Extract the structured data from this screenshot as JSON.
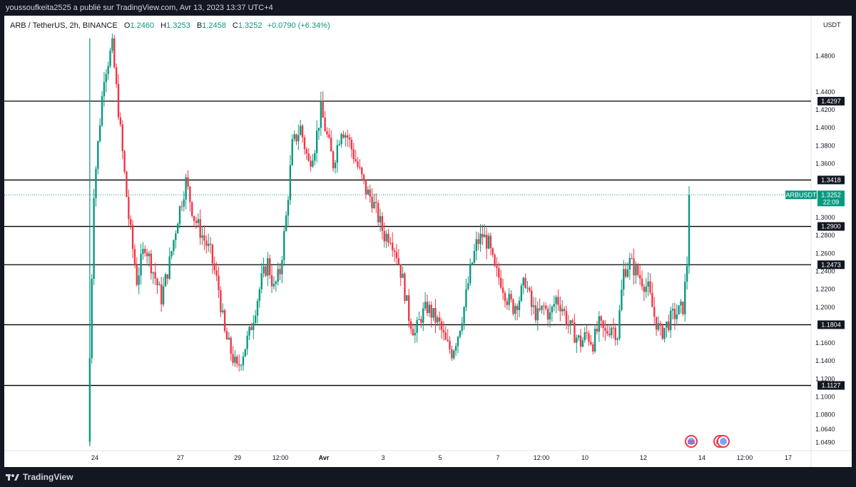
{
  "header": {
    "publisher_line": "youssoufkeita2525 a publié sur TradingView.com, Avr 13, 2023 13:37 UTC+4"
  },
  "legend": {
    "symbol": "ARB / TetherUS, 2h, BINANCE",
    "open_label": "O",
    "open": "1.2460",
    "high_label": "H",
    "high": "1.3253",
    "low_label": "B",
    "low": "1.2458",
    "close_label": "C",
    "close": "1.3252",
    "change": "+0.0790 (+6.34%)"
  },
  "currency": "USDT",
  "footer": {
    "logo_text": "TradingView"
  },
  "colors": {
    "up": "#089981",
    "down": "#f23645",
    "level_line": "#000000",
    "price_line": "#089981"
  },
  "chart_data": {
    "type": "candlestick",
    "symbol": "ARB / TetherUS",
    "interval": "2h",
    "exchange": "BINANCE",
    "ylim": [
      1.04,
      1.525
    ],
    "y_ticks": [
      "1.4800",
      "1.4400",
      "1.4200",
      "1.4000",
      "1.3800",
      "1.3600",
      "1.3000",
      "1.2800",
      "1.2600",
      "1.2400",
      "1.2200",
      "1.2000",
      "1.1600",
      "1.1400",
      "1.1200",
      "1.1000",
      "1.0800",
      "1.0640",
      "1.0490"
    ],
    "x_ticks": [
      "24",
      "27",
      "29",
      "12:00",
      "Avr",
      "3",
      "5",
      "7",
      "12:00",
      "10",
      "12",
      "14",
      "12:00",
      "17"
    ],
    "horizontal_levels": [
      "1.4297",
      "1.3418",
      "1.2900",
      "1.2473",
      "1.1804",
      "1.1127"
    ],
    "last_price": {
      "symbol_label": "ARBUSDT",
      "value": "1.3252",
      "countdown": "22:09"
    },
    "ohlc": {
      "open": 1.246,
      "high": 1.3253,
      "low": 1.2458,
      "close": 1.3252,
      "change": 0.079,
      "change_pct": 6.34
    },
    "price_path": [
      [
        0,
        1.05
      ],
      [
        3,
        1.33
      ],
      [
        8,
        1.46
      ],
      [
        12,
        1.49
      ],
      [
        15,
        1.42
      ],
      [
        20,
        1.3
      ],
      [
        24,
        1.23
      ],
      [
        28,
        1.27
      ],
      [
        32,
        1.24
      ],
      [
        36,
        1.21
      ],
      [
        40,
        1.25
      ],
      [
        44,
        1.3
      ],
      [
        48,
        1.34
      ],
      [
        52,
        1.3
      ],
      [
        56,
        1.28
      ],
      [
        60,
        1.26
      ],
      [
        64,
        1.22
      ],
      [
        67,
        1.17
      ],
      [
        70,
        1.15
      ],
      [
        73,
        1.13
      ],
      [
        76,
        1.15
      ],
      [
        79,
        1.17
      ],
      [
        82,
        1.2
      ],
      [
        85,
        1.23
      ],
      [
        88,
        1.25
      ],
      [
        91,
        1.22
      ],
      [
        94,
        1.24
      ],
      [
        97,
        1.3
      ],
      [
        100,
        1.38
      ],
      [
        104,
        1.4
      ],
      [
        108,
        1.36
      ],
      [
        111,
        1.38
      ],
      [
        114,
        1.42
      ],
      [
        117,
        1.39
      ],
      [
        120,
        1.36
      ],
      [
        124,
        1.4
      ],
      [
        127,
        1.39
      ],
      [
        130,
        1.37
      ],
      [
        133,
        1.35
      ],
      [
        136,
        1.33
      ],
      [
        139,
        1.32
      ],
      [
        142,
        1.3
      ],
      [
        145,
        1.28
      ],
      [
        148,
        1.28
      ],
      [
        151,
        1.26
      ],
      [
        154,
        1.23
      ],
      [
        157,
        1.19
      ],
      [
        160,
        1.17
      ],
      [
        163,
        1.19
      ],
      [
        166,
        1.2
      ],
      [
        169,
        1.19
      ],
      [
        172,
        1.18
      ],
      [
        175,
        1.16
      ],
      [
        178,
        1.15
      ],
      [
        181,
        1.17
      ],
      [
        184,
        1.2
      ],
      [
        187,
        1.24
      ],
      [
        190,
        1.27
      ],
      [
        193,
        1.28
      ],
      [
        196,
        1.27
      ],
      [
        199,
        1.24
      ],
      [
        202,
        1.23
      ],
      [
        205,
        1.21
      ],
      [
        208,
        1.2
      ],
      [
        211,
        1.21
      ],
      [
        214,
        1.23
      ],
      [
        217,
        1.2
      ],
      [
        220,
        1.19
      ],
      [
        223,
        1.2
      ],
      [
        226,
        1.19
      ],
      [
        229,
        1.21
      ],
      [
        232,
        1.2
      ],
      [
        235,
        1.18
      ],
      [
        238,
        1.17
      ],
      [
        241,
        1.16
      ],
      [
        244,
        1.17
      ],
      [
        247,
        1.16
      ],
      [
        250,
        1.18
      ],
      [
        253,
        1.17
      ],
      [
        256,
        1.18
      ],
      [
        259,
        1.17
      ],
      [
        262,
        1.24
      ],
      [
        265,
        1.25
      ],
      [
        268,
        1.24
      ],
      [
        271,
        1.23
      ],
      [
        274,
        1.22
      ],
      [
        277,
        1.19
      ],
      [
        280,
        1.17
      ],
      [
        283,
        1.18
      ],
      [
        286,
        1.19
      ],
      [
        289,
        1.195
      ],
      [
        291,
        1.2
      ],
      [
        293,
        1.246
      ],
      [
        294,
        1.3252
      ]
    ]
  }
}
